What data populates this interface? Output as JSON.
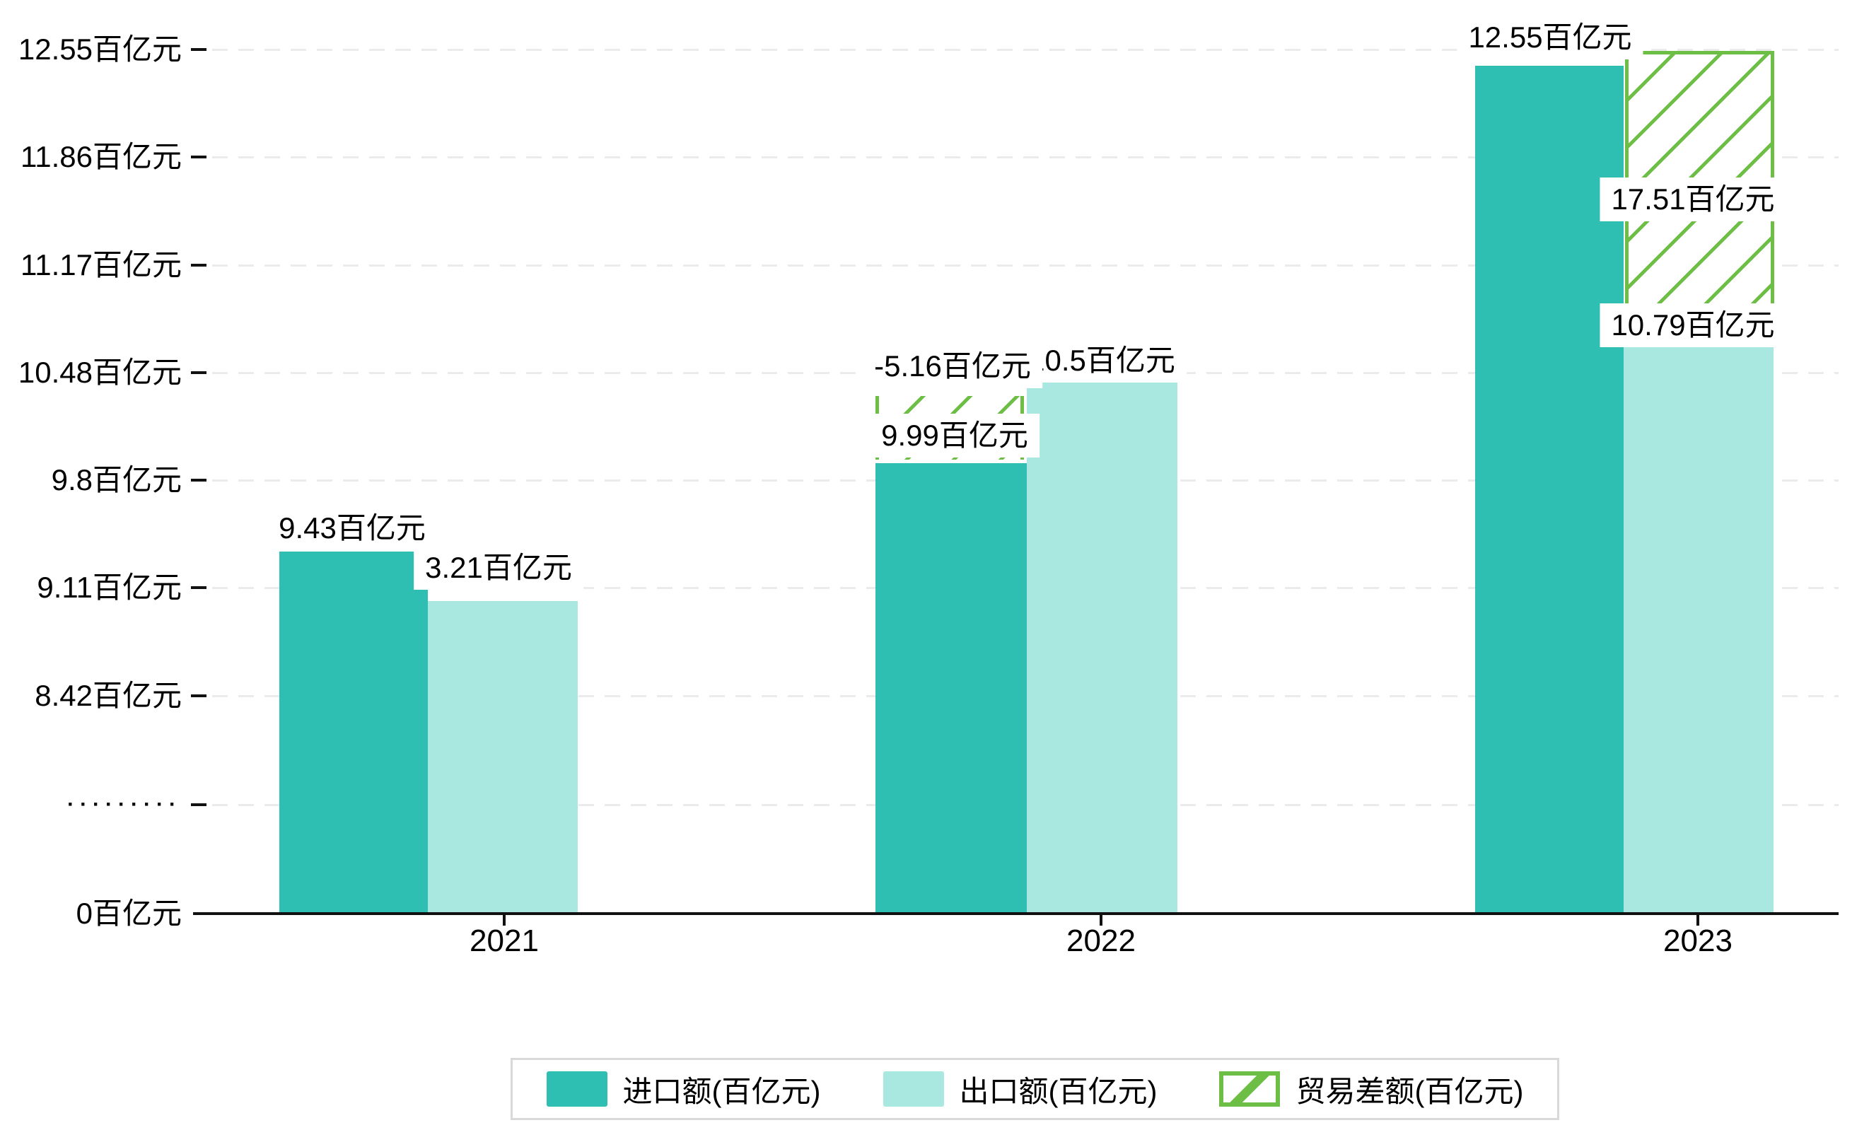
{
  "chart_data": {
    "type": "bar",
    "title": "",
    "unit": "百亿元",
    "categories": [
      "2021",
      "2022",
      "2023"
    ],
    "series": [
      {
        "key": "import",
        "name": "进口额(百亿元)",
        "color": "#2fbfb2",
        "hatch": false,
        "values": [
          9.43,
          9.99,
          12.55
        ]
      },
      {
        "key": "export",
        "name": "出口额(百亿元)",
        "color": "#a9e8e0",
        "hatch": false,
        "values": [
          3.21,
          10.5,
          10.79
        ]
      },
      {
        "key": "balance",
        "name": "贸易差额(百亿元)",
        "color": "#6cbf44",
        "hatch": true,
        "values": [
          null,
          -5.16,
          17.51
        ]
      }
    ],
    "y_ticks": [
      "12.55百亿元",
      "11.86百亿元",
      "11.17百亿元",
      "10.48百亿元",
      "9.8百亿元",
      "9.11百亿元",
      "8.42百亿元",
      "·········",
      "0百亿元"
    ],
    "axis_break_marker": "·········",
    "grid": "dashed-horizontal",
    "legend_position": "bottom",
    "colors": {
      "import": "#2fbfb2",
      "export": "#a9e8e0",
      "balance": "#6cbf44",
      "grid": "#ebebeb",
      "axis": "#111111",
      "label_bg": "#ffffff"
    }
  }
}
